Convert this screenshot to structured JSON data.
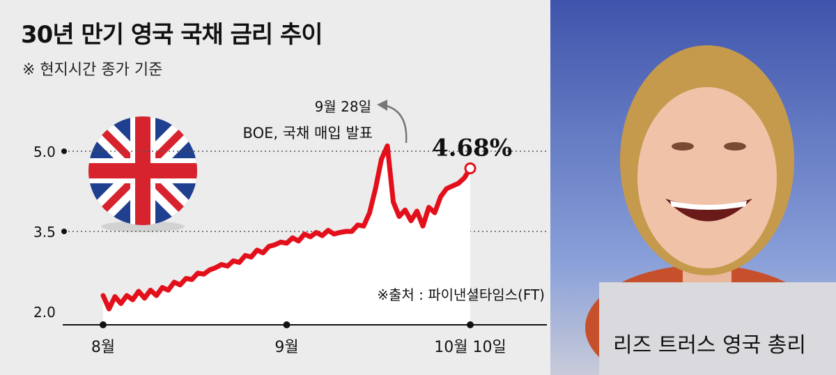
{
  "chart_data": {
    "type": "line",
    "title": "30년 만기 영국 국채 금리 추이",
    "subtitle": "※ 현지시간 종가 기준",
    "yticks": [
      "5.0",
      "3.5",
      "2.0"
    ],
    "ytick_values": [
      5.0,
      3.5,
      2.0
    ],
    "ylim": [
      2.0,
      5.0
    ],
    "xticks": [
      "8월",
      "9월",
      "10월 10일"
    ],
    "xtick_days": [
      0,
      31,
      62
    ],
    "series": [
      {
        "x": [
          0,
          1,
          2,
          3,
          4,
          5,
          6,
          7,
          8,
          9,
          10,
          11,
          12,
          13,
          14,
          15,
          16,
          17,
          18,
          19,
          20,
          21,
          22,
          23,
          24,
          25,
          26,
          27,
          28,
          29,
          30,
          31,
          32,
          33,
          34,
          35,
          36,
          37,
          38,
          39,
          40,
          41,
          42,
          43,
          44,
          45,
          46,
          47,
          48,
          49,
          50,
          51,
          52,
          53,
          54,
          55,
          56,
          57,
          58,
          59,
          60,
          61,
          62
        ],
        "y": [
          2.3,
          2.05,
          2.28,
          2.15,
          2.3,
          2.22,
          2.38,
          2.25,
          2.4,
          2.3,
          2.45,
          2.4,
          2.55,
          2.5,
          2.62,
          2.6,
          2.72,
          2.7,
          2.78,
          2.82,
          2.88,
          2.85,
          2.95,
          2.92,
          3.05,
          3.02,
          3.15,
          3.1,
          3.22,
          3.25,
          3.3,
          3.28,
          3.38,
          3.32,
          3.45,
          3.4,
          3.48,
          3.42,
          3.52,
          3.45,
          3.48,
          3.5,
          3.5,
          3.62,
          3.6,
          3.85,
          4.3,
          4.85,
          5.1,
          4.05,
          3.78,
          3.9,
          3.7,
          3.88,
          3.6,
          3.95,
          3.85,
          4.15,
          4.3,
          4.35,
          4.4,
          4.5,
          4.68
        ]
      }
    ],
    "end_label": "4.68%",
    "annotation_date": "9월 28일",
    "annotation_text": "BOE, 국채 매입 발표",
    "source": "※출처 : 파이낸셜타임스(FT)",
    "colors": {
      "line": "#e3101b",
      "area": "#ffffff",
      "bg": "#ececec"
    }
  },
  "photo": {
    "caption": "리즈 트러스 영국 총리"
  }
}
